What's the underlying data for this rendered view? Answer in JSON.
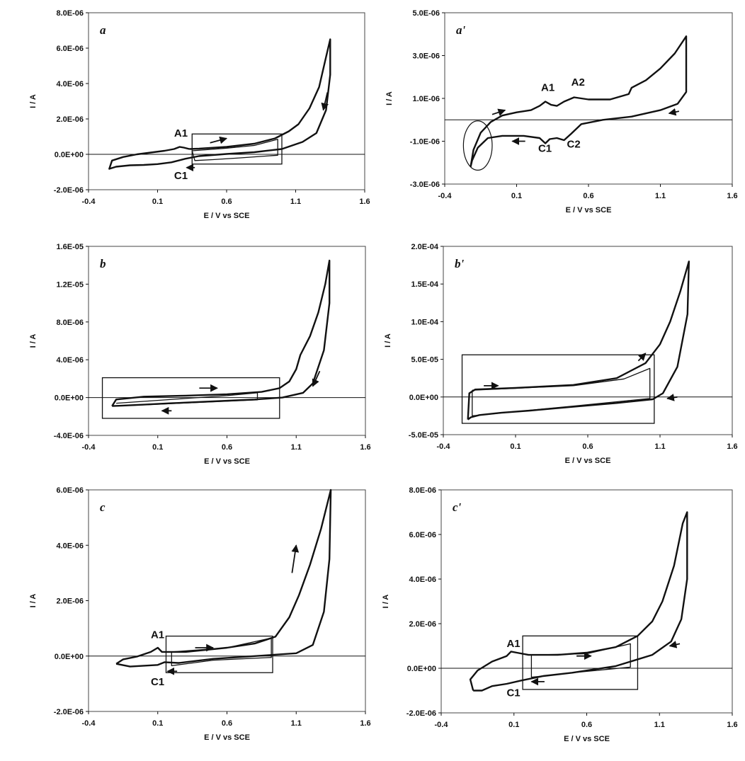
{
  "colors": {
    "trace": "#111111",
    "frame": "#444444",
    "background": "#ffffff"
  },
  "chart_data": [
    {
      "type": "line",
      "panel_label": "a",
      "xlabel": "E / V vs SCE",
      "ylabel": "I / A",
      "xlim": [
        -0.4,
        1.6
      ],
      "ylim": [
        -2e-06,
        8e-06
      ],
      "x_ticks": [
        "-0.4",
        "0.1",
        "0.6",
        "1.1",
        "1.6"
      ],
      "y_ticks": [
        "-2.0E-06",
        "0.0E+00",
        "2.0E-06",
        "4.0E-06",
        "6.0E-06",
        "8.0E-06"
      ],
      "annotations": [
        {
          "text": "A1",
          "x": 0.22,
          "y": 1e-06
        },
        {
          "text": "C1",
          "x": 0.22,
          "y": -1.4e-06
        }
      ],
      "series": [
        {
          "values": [
            [
              0.33,
              3e-07
            ],
            [
              0.4,
              3.2e-07
            ],
            [
              0.6,
              4.2e-07
            ],
            [
              0.8,
              6e-07
            ],
            [
              0.95,
              9e-07
            ],
            [
              1.05,
              1.3e-06
            ],
            [
              1.12,
              1.7e-06
            ],
            [
              1.2,
              2.6e-06
            ],
            [
              1.27,
              3.8e-06
            ],
            [
              1.32,
              5.5e-06
            ],
            [
              1.35,
              6.5e-06
            ],
            [
              1.35,
              4.5e-06
            ],
            [
              1.32,
              2.5e-06
            ],
            [
              1.25,
              1.2e-06
            ],
            [
              1.15,
              7e-07
            ],
            [
              1.0,
              3e-07
            ],
            [
              0.8,
              1.2e-07
            ],
            [
              0.6,
              2e-08
            ],
            [
              0.4,
              -1e-07
            ],
            [
              0.3,
              -2.5e-07
            ],
            [
              0.2,
              -4.5e-07
            ],
            [
              0.1,
              -5.5e-07
            ],
            [
              0.0,
              -6e-07
            ],
            [
              -0.1,
              -6.2e-07
            ],
            [
              -0.2,
              -7e-07
            ],
            [
              -0.25,
              -8.2e-07
            ],
            [
              -0.23,
              -3.5e-07
            ],
            [
              -0.15,
              -1.5e-07
            ],
            [
              -0.05,
              0.0
            ],
            [
              0.05,
              1e-07
            ],
            [
              0.15,
              2e-07
            ],
            [
              0.22,
              3e-07
            ],
            [
              0.26,
              4.2e-07
            ],
            [
              0.29,
              3.8e-07
            ],
            [
              0.33,
              3e-07
            ]
          ]
        },
        {
          "values": [
            [
              0.35,
              2e-07
            ],
            [
              0.6,
              3.5e-07
            ],
            [
              0.8,
              5e-07
            ],
            [
              0.97,
              8.5e-07
            ],
            [
              0.97,
              -5e-08
            ],
            [
              0.7,
              -2e-07
            ],
            [
              0.5,
              -3e-07
            ],
            [
              0.37,
              -3.5e-07
            ],
            [
              0.35,
              2e-07
            ]
          ]
        }
      ]
    },
    {
      "type": "line",
      "panel_label": "a'",
      "xlabel": "E / V vs SCE",
      "ylabel": "I / A",
      "xlim": [
        -0.4,
        1.6
      ],
      "ylim": [
        -3e-06,
        5e-06
      ],
      "x_ticks": [
        "-0.4",
        "0.1",
        "0.6",
        "1.1",
        "1.6"
      ],
      "y_ticks": [
        "-3.0E-06",
        "-1.0E-06",
        "1.0E-06",
        "3.0E-06",
        "5.0E-06"
      ],
      "annotations": [
        {
          "text": "A1",
          "x": 0.27,
          "y": 1.35e-06
        },
        {
          "text": "A2",
          "x": 0.48,
          "y": 1.6e-06
        },
        {
          "text": "C1",
          "x": 0.25,
          "y": -1.5e-06
        },
        {
          "text": "C2",
          "x": 0.45,
          "y": -1.3e-06
        }
      ],
      "series": [
        {
          "values": [
            [
              -0.22,
              -2.2e-06
            ],
            [
              -0.2,
              -1.4e-06
            ],
            [
              -0.15,
              -6e-07
            ],
            [
              -0.08,
              -1e-07
            ],
            [
              0.0,
              2e-07
            ],
            [
              0.1,
              3.5e-07
            ],
            [
              0.2,
              4.5e-07
            ],
            [
              0.26,
              6.5e-07
            ],
            [
              0.3,
              8.5e-07
            ],
            [
              0.34,
              7e-07
            ],
            [
              0.38,
              6.5e-07
            ],
            [
              0.43,
              8.5e-07
            ],
            [
              0.5,
              1.05e-06
            ],
            [
              0.6,
              9.5e-07
            ],
            [
              0.75,
              9.5e-07
            ],
            [
              0.88,
              1.2e-06
            ],
            [
              0.9,
              1.5e-06
            ],
            [
              1.0,
              1.85e-06
            ],
            [
              1.1,
              2.4e-06
            ],
            [
              1.2,
              3.1e-06
            ],
            [
              1.28,
              3.9e-06
            ],
            [
              1.28,
              1.3e-06
            ],
            [
              1.22,
              7.5e-07
            ],
            [
              1.1,
              4.5e-07
            ],
            [
              0.9,
              1.5e-07
            ],
            [
              0.7,
              0.0
            ],
            [
              0.55,
              -2e-07
            ],
            [
              0.48,
              -6.5e-07
            ],
            [
              0.43,
              -9.5e-07
            ],
            [
              0.38,
              -8.5e-07
            ],
            [
              0.33,
              -9e-07
            ],
            [
              0.3,
              -1.1e-06
            ],
            [
              0.26,
              -8.5e-07
            ],
            [
              0.15,
              -7.5e-07
            ],
            [
              0.0,
              -7.5e-07
            ],
            [
              -0.1,
              -8.5e-07
            ],
            [
              -0.17,
              -1.3e-06
            ],
            [
              -0.21,
              -1.9e-06
            ],
            [
              -0.22,
              -2.2e-06
            ]
          ]
        }
      ]
    },
    {
      "type": "line",
      "panel_label": "b",
      "xlabel": "E / V vs SCE",
      "ylabel": "I / A",
      "xlim": [
        -0.4,
        1.6
      ],
      "ylim": [
        -4e-06,
        1.6e-05
      ],
      "x_ticks": [
        "-0.4",
        "0.1",
        "0.6",
        "1.1",
        "1.6"
      ],
      "y_ticks": [
        "-4.0E-06",
        "0.0E+00",
        "4.0E-06",
        "8.0E-06",
        "1.2E-05",
        "1.6E-05"
      ],
      "annotations": [],
      "series": [
        {
          "values": [
            [
              -0.23,
              -9e-07
            ],
            [
              -0.2,
              -2e-07
            ],
            [
              0.0,
              1e-07
            ],
            [
              0.3,
              2e-07
            ],
            [
              0.6,
              3.5e-07
            ],
            [
              0.85,
              6e-07
            ],
            [
              0.98,
              1e-06
            ],
            [
              1.05,
              1.7e-06
            ],
            [
              1.1,
              3e-06
            ],
            [
              1.13,
              4.5e-06
            ],
            [
              1.2,
              6.5e-06
            ],
            [
              1.26,
              9e-06
            ],
            [
              1.31,
              1.2e-05
            ],
            [
              1.34,
              1.45e-05
            ],
            [
              1.34,
              1e-05
            ],
            [
              1.3,
              5e-06
            ],
            [
              1.22,
              1.5e-06
            ],
            [
              1.15,
              5e-07
            ],
            [
              1.0,
              0.0
            ],
            [
              0.8,
              -2e-07
            ],
            [
              0.5,
              -4e-07
            ],
            [
              0.2,
              -6e-07
            ],
            [
              0.0,
              -7.5e-07
            ],
            [
              -0.15,
              -8.5e-07
            ],
            [
              -0.23,
              -9e-07
            ]
          ]
        },
        {
          "values": [
            [
              -0.2,
              -6e-07
            ],
            [
              0.3,
              -1e-07
            ],
            [
              0.6,
              2e-07
            ],
            [
              0.82,
              5e-07
            ],
            [
              0.82,
              -2.5e-07
            ],
            [
              0.5,
              -4.5e-07
            ],
            [
              -0.2,
              -9e-07
            ]
          ]
        }
      ]
    },
    {
      "type": "line",
      "panel_label": "b'",
      "xlabel": "E / V vs SCE",
      "ylabel": "I / A",
      "xlim": [
        -0.4,
        1.6
      ],
      "ylim": [
        -5e-05,
        0.0002
      ],
      "x_ticks": [
        "-0.4",
        "0.1",
        "0.6",
        "1.1",
        "1.6"
      ],
      "y_ticks": [
        "-5.0E-05",
        "0.0E+00",
        "5.0E-05",
        "1.0E-04",
        "1.5E-04",
        "2.0E-04"
      ],
      "annotations": [],
      "series": [
        {
          "values": [
            [
              -0.23,
              -3e-05
            ],
            [
              -0.22,
              5e-06
            ],
            [
              -0.18,
              1e-05
            ],
            [
              0.1,
              1.2e-05
            ],
            [
              0.5,
              1.6e-05
            ],
            [
              0.8,
              2.5e-05
            ],
            [
              1.0,
              4.5e-05
            ],
            [
              1.1,
              7e-05
            ],
            [
              1.17,
              0.0001
            ],
            [
              1.24,
              0.00014
            ],
            [
              1.3,
              0.00018
            ],
            [
              1.29,
              0.00011
            ],
            [
              1.22,
              4e-05
            ],
            [
              1.12,
              5e-06
            ],
            [
              1.05,
              -3e-06
            ],
            [
              0.8,
              -8e-06
            ],
            [
              0.5,
              -1.3e-05
            ],
            [
              0.2,
              -1.8e-05
            ],
            [
              0.0,
              -2.1e-05
            ],
            [
              -0.15,
              -2.4e-05
            ],
            [
              -0.21,
              -2.7e-05
            ],
            [
              -0.23,
              -3e-05
            ]
          ]
        },
        {
          "values": [
            [
              -0.2,
              9e-06
            ],
            [
              0.5,
              1.5e-05
            ],
            [
              0.85,
              2.4e-05
            ],
            [
              1.03,
              3.8e-05
            ],
            [
              1.03,
              -2e-06
            ],
            [
              0.5,
              -1.2e-05
            ],
            [
              -0.2,
              -2.5e-05
            ],
            [
              -0.2,
              9e-06
            ]
          ]
        }
      ]
    },
    {
      "type": "line",
      "panel_label": "c",
      "xlabel": "E / V vs SCE",
      "ylabel": "I / A",
      "xlim": [
        -0.4,
        1.6
      ],
      "ylim": [
        -2e-06,
        6e-06
      ],
      "x_ticks": [
        "-0.4",
        "0.1",
        "0.6",
        "1.1",
        "1.6"
      ],
      "y_ticks": [
        "-2.0E-06",
        "0.0E+00",
        "2.0E-06",
        "4.0E-06",
        "6.0E-06"
      ],
      "annotations": [
        {
          "text": "A1",
          "x": 0.05,
          "y": 6.5e-07
        },
        {
          "text": "C1",
          "x": 0.05,
          "y": -1.05e-06
        }
      ],
      "series": [
        {
          "values": [
            [
              -0.2,
              -2.8e-07
            ],
            [
              -0.15,
              -1.2e-07
            ],
            [
              -0.05,
              -2e-08
            ],
            [
              0.05,
              1.5e-07
            ],
            [
              0.1,
              3e-07
            ],
            [
              0.13,
              1.5e-07
            ],
            [
              0.3,
              1.5e-07
            ],
            [
              0.6,
              3e-07
            ],
            [
              0.8,
              4.5e-07
            ],
            [
              0.95,
              7e-07
            ],
            [
              1.05,
              1.4e-06
            ],
            [
              1.12,
              2.2e-06
            ],
            [
              1.2,
              3.3e-06
            ],
            [
              1.28,
              4.6e-06
            ],
            [
              1.35,
              6e-06
            ],
            [
              1.34,
              3.5e-06
            ],
            [
              1.3,
              1.6e-06
            ],
            [
              1.22,
              4e-07
            ],
            [
              1.1,
              1e-07
            ],
            [
              0.8,
              0.0
            ],
            [
              0.5,
              -1e-07
            ],
            [
              0.25,
              -2.5e-07
            ],
            [
              0.15,
              -2.2e-07
            ],
            [
              0.1,
              -3.2e-07
            ],
            [
              0.0,
              -3.5e-07
            ],
            [
              -0.1,
              -3.8e-07
            ],
            [
              -0.2,
              -2.8e-07
            ]
          ]
        },
        {
          "values": [
            [
              0.2,
              1.5e-07
            ],
            [
              0.6,
              3e-07
            ],
            [
              0.92,
              6.5e-07
            ],
            [
              0.92,
              -5e-08
            ],
            [
              0.5,
              -1.5e-07
            ],
            [
              0.2,
              -3.5e-07
            ],
            [
              0.2,
              1.5e-07
            ]
          ]
        }
      ]
    },
    {
      "type": "line",
      "panel_label": "c'",
      "xlabel": "E / V vs SCE",
      "ylabel": "I / A",
      "xlim": [
        -0.4,
        1.6
      ],
      "ylim": [
        -2e-06,
        8e-06
      ],
      "x_ticks": [
        "-0.4",
        "0.1",
        "0.6",
        "1.1",
        "1.6"
      ],
      "y_ticks": [
        "-2.0E-06",
        "0.0E+00",
        "2.0E-06",
        "4.0E-06",
        "6.0E-06",
        "8.0E-06"
      ],
      "annotations": [
        {
          "text": "A1",
          "x": 0.05,
          "y": 9.5e-07
        },
        {
          "text": "C1",
          "x": 0.05,
          "y": -1.25e-06
        }
      ],
      "series": [
        {
          "values": [
            [
              -0.18,
              -1e-06
            ],
            [
              -0.2,
              -5e-07
            ],
            [
              -0.15,
              -1e-07
            ],
            [
              -0.05,
              3e-07
            ],
            [
              0.05,
              5.5e-07
            ],
            [
              0.08,
              7.5e-07
            ],
            [
              0.12,
              7e-07
            ],
            [
              0.2,
              6e-07
            ],
            [
              0.4,
              6e-07
            ],
            [
              0.6,
              7e-07
            ],
            [
              0.8,
              9.5e-07
            ],
            [
              0.95,
              1.45e-06
            ],
            [
              1.05,
              2.1e-06
            ],
            [
              1.12,
              3e-06
            ],
            [
              1.2,
              4.6e-06
            ],
            [
              1.26,
              6.5e-06
            ],
            [
              1.29,
              7e-06
            ],
            [
              1.29,
              4e-06
            ],
            [
              1.25,
              2.2e-06
            ],
            [
              1.18,
              1.2e-06
            ],
            [
              1.05,
              6e-07
            ],
            [
              0.8,
              1e-07
            ],
            [
              0.5,
              -2e-07
            ],
            [
              0.3,
              -3.5e-07
            ],
            [
              0.15,
              -5.5e-07
            ],
            [
              0.05,
              -7e-07
            ],
            [
              -0.05,
              -8e-07
            ],
            [
              -0.12,
              -1e-06
            ],
            [
              -0.18,
              -1e-06
            ]
          ]
        },
        {
          "values": [
            [
              0.22,
              6e-07
            ],
            [
              0.6,
              6.5e-07
            ],
            [
              0.9,
              1.1e-06
            ],
            [
              0.9,
              5e-08
            ],
            [
              0.5,
              -2e-07
            ],
            [
              0.22,
              -4e-07
            ],
            [
              0.22,
              6e-07
            ]
          ]
        }
      ]
    }
  ]
}
